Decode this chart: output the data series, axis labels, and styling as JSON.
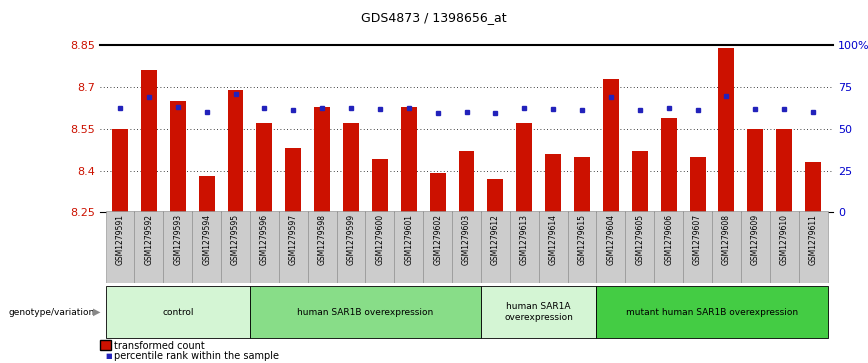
{
  "title": "GDS4873 / 1398656_at",
  "samples": [
    "GSM1279591",
    "GSM1279592",
    "GSM1279593",
    "GSM1279594",
    "GSM1279595",
    "GSM1279596",
    "GSM1279597",
    "GSM1279598",
    "GSM1279599",
    "GSM1279600",
    "GSM1279601",
    "GSM1279602",
    "GSM1279603",
    "GSM1279612",
    "GSM1279613",
    "GSM1279614",
    "GSM1279615",
    "GSM1279604",
    "GSM1279605",
    "GSM1279606",
    "GSM1279607",
    "GSM1279608",
    "GSM1279609",
    "GSM1279610",
    "GSM1279611"
  ],
  "bar_values": [
    8.55,
    8.76,
    8.65,
    8.38,
    8.69,
    8.57,
    8.48,
    8.63,
    8.57,
    8.44,
    8.63,
    8.39,
    8.47,
    8.37,
    8.57,
    8.46,
    8.45,
    8.73,
    8.47,
    8.59,
    8.45,
    8.84,
    8.55,
    8.55,
    8.43
  ],
  "dot_values": [
    8.625,
    8.665,
    8.63,
    8.61,
    8.675,
    8.625,
    8.618,
    8.625,
    8.625,
    8.62,
    8.625,
    8.607,
    8.612,
    8.608,
    8.625,
    8.62,
    8.618,
    8.665,
    8.618,
    8.625,
    8.618,
    8.668,
    8.62,
    8.62,
    8.612
  ],
  "groups": [
    {
      "label": "control",
      "start": 0,
      "end": 5,
      "color": "#d4f5d4"
    },
    {
      "label": "human SAR1B overexpression",
      "start": 5,
      "end": 13,
      "color": "#88dd88"
    },
    {
      "label": "human SAR1A\noverexpression",
      "start": 13,
      "end": 17,
      "color": "#d4f5d4"
    },
    {
      "label": "mutant human SAR1B overexpression",
      "start": 17,
      "end": 25,
      "color": "#44cc44"
    }
  ],
  "ylim": [
    8.25,
    8.85
  ],
  "yticks": [
    8.25,
    8.4,
    8.55,
    8.7,
    8.85
  ],
  "ytick_labels": [
    "8.25",
    "8.4",
    "8.55",
    "8.7",
    "8.85"
  ],
  "right_yticks": [
    0,
    25,
    50,
    75,
    100
  ],
  "right_ytick_labels": [
    "0",
    "25",
    "50",
    "75",
    "100%"
  ],
  "bar_color": "#cc1100",
  "dot_color": "#2222bb",
  "label_bg": "#cccccc",
  "ylabel_right_color": "#0000cc"
}
